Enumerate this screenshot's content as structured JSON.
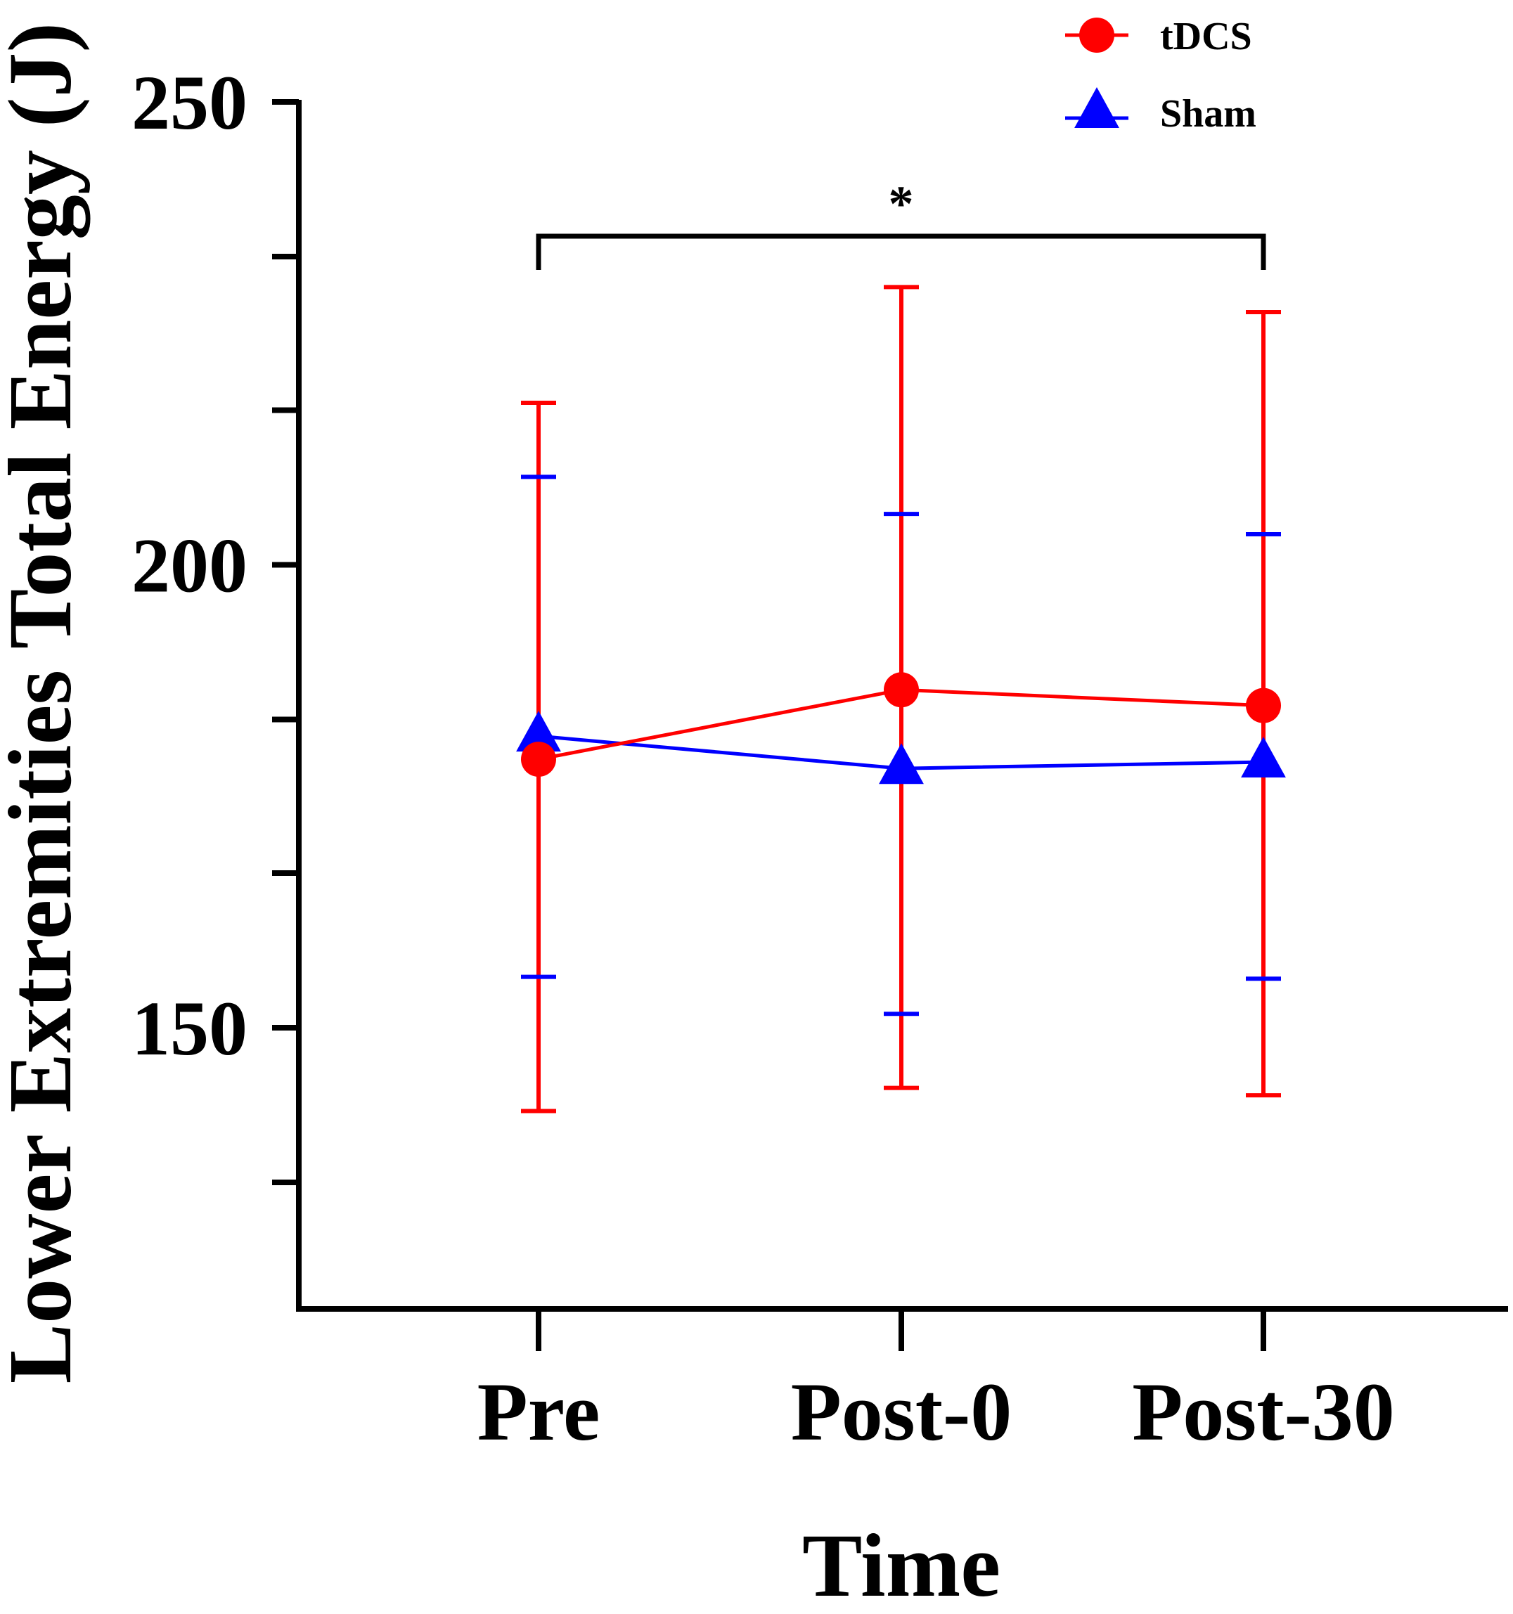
{
  "chart_data": {
    "type": "line",
    "title": "",
    "xlabel": "Time",
    "ylabel": "Lower Extremities Total Energy (J)",
    "categories": [
      "Pre",
      "Post-0",
      "Post-30"
    ],
    "ylim": [
      115,
      250
    ],
    "yticks": [
      250,
      200,
      150
    ],
    "yminor_ticks": [
      233.3,
      216.7,
      183.3,
      166.7,
      133.3
    ],
    "grid": false,
    "legend_position": "top-right",
    "series": [
      {
        "name": "tDCS",
        "color": "#ff0000",
        "marker": "circle",
        "values": [
          179,
          186.5,
          184.8
        ],
        "error_upper": [
          217.5,
          230,
          227.3
        ],
        "error_lower": [
          141,
          143.5,
          142.7
        ]
      },
      {
        "name": "Sham",
        "color": "#0000ff",
        "marker": "triangle",
        "values": [
          181.5,
          178,
          178.7
        ],
        "error_upper": [
          209.5,
          205.5,
          203.3
        ],
        "error_lower": [
          155.5,
          151.5,
          155.3
        ]
      }
    ],
    "annotations": [
      {
        "text": "*",
        "from": "Pre",
        "to": "Post-30",
        "bracket_level": 235.5
      }
    ]
  }
}
